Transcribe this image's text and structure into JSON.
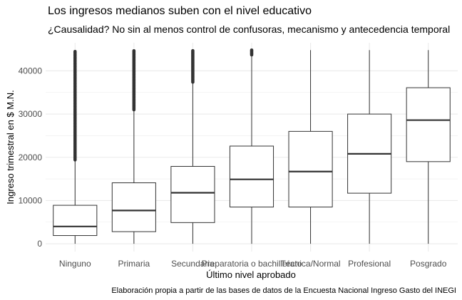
{
  "title": "Los ingresos medianos suben con el nivel educativo",
  "subtitle": "¿Causalidad? No sin al menos control de confusoras, mecanismo y antecedencia temporal",
  "caption": "Elaboración propia a partir de las bases de datos de la Encuesta Nacional Ingreso Gasto del INEGI",
  "colors": {
    "box_fill": "#ffffff",
    "box_line": "#333333",
    "grid": "#ebebeb",
    "axis_text": "#4d4d4d"
  },
  "chart_data": {
    "type": "boxplot",
    "xlabel": "Último nivel aprobado",
    "ylabel": "Ingreso trimestral en $ M.N.",
    "ylim": [
      -1800,
      46500
    ],
    "yticks": [
      0,
      10000,
      20000,
      30000,
      40000
    ],
    "ytick_labels": [
      "0",
      "10000",
      "20000",
      "30000",
      "40000"
    ],
    "grid": true,
    "categories": [
      "Ninguno",
      "Primaria",
      "Secundaria",
      "Preparatoria o bachillerato",
      "Técnica/Normal",
      "Profesional",
      "Posgrado"
    ],
    "boxes": [
      {
        "min": 0,
        "q1": 1900,
        "median": 4000,
        "q3": 8900,
        "max": 19400,
        "outliers_range": [
          19400,
          44500
        ]
      },
      {
        "min": 0,
        "q1": 2800,
        "median": 7700,
        "q3": 14100,
        "max": 31000,
        "outliers_range": [
          31000,
          44800
        ]
      },
      {
        "min": 0,
        "q1": 4900,
        "median": 11800,
        "q3": 17900,
        "max": 37400,
        "outliers_range": [
          37400,
          44800
        ]
      },
      {
        "min": 0,
        "q1": 8500,
        "median": 14900,
        "q3": 22600,
        "max": 43700,
        "outliers_range": [
          43700,
          44800
        ]
      },
      {
        "min": 0,
        "q1": 8500,
        "median": 16700,
        "q3": 26000,
        "max": 44800,
        "outliers_range": null
      },
      {
        "min": 0,
        "q1": 11700,
        "median": 20800,
        "q3": 30000,
        "max": 44800,
        "outliers_range": null
      },
      {
        "min": 0,
        "q1": 19000,
        "median": 28600,
        "q3": 36100,
        "max": 44800,
        "outliers_range": null
      }
    ]
  }
}
